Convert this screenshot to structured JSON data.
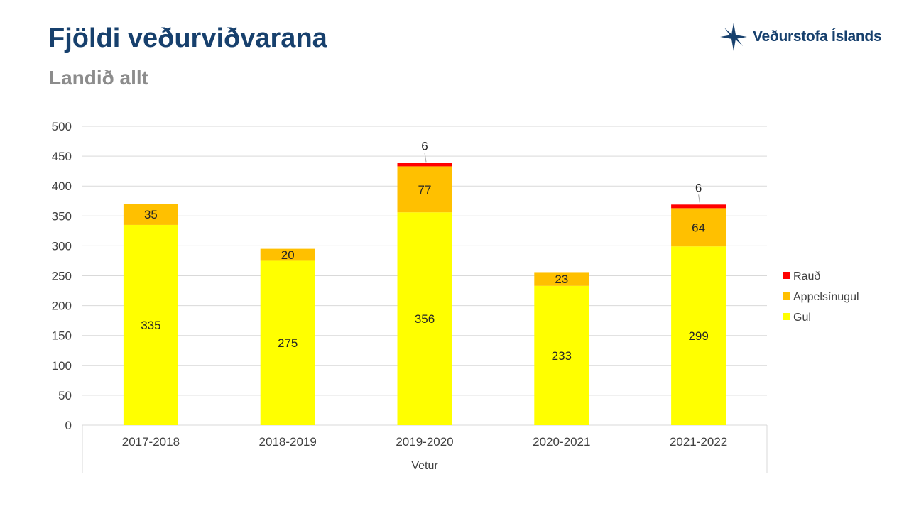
{
  "header": {
    "title": "Fjöldi veðurviðvarana",
    "subtitle": "Landið allt"
  },
  "logo": {
    "name": "Veðurstofa Íslands",
    "icon": "vedurstofa-star-icon",
    "color": "#17406d"
  },
  "chart_data": {
    "type": "bar",
    "stacked": true,
    "categories": [
      "2017-2018",
      "2018-2019",
      "2019-2020",
      "2020-2021",
      "2021-2022"
    ],
    "series": [
      {
        "name": "Gul",
        "color": "#ffff00",
        "values": [
          335,
          275,
          356,
          233,
          299
        ]
      },
      {
        "name": "Appelsínugul",
        "color": "#ffc000",
        "values": [
          35,
          20,
          77,
          23,
          64
        ]
      },
      {
        "name": "Rauð",
        "color": "#ff0000",
        "values": [
          0,
          0,
          6,
          0,
          6
        ]
      }
    ],
    "xlabel": "Vetur",
    "ylabel": "",
    "ylim": [
      0,
      500
    ],
    "yticks": [
      0,
      50,
      100,
      150,
      200,
      250,
      300,
      350,
      400,
      450,
      500
    ],
    "grid": true,
    "legend_position": "right",
    "legend_order": [
      "Rauð",
      "Appelsínugul",
      "Gul"
    ]
  }
}
